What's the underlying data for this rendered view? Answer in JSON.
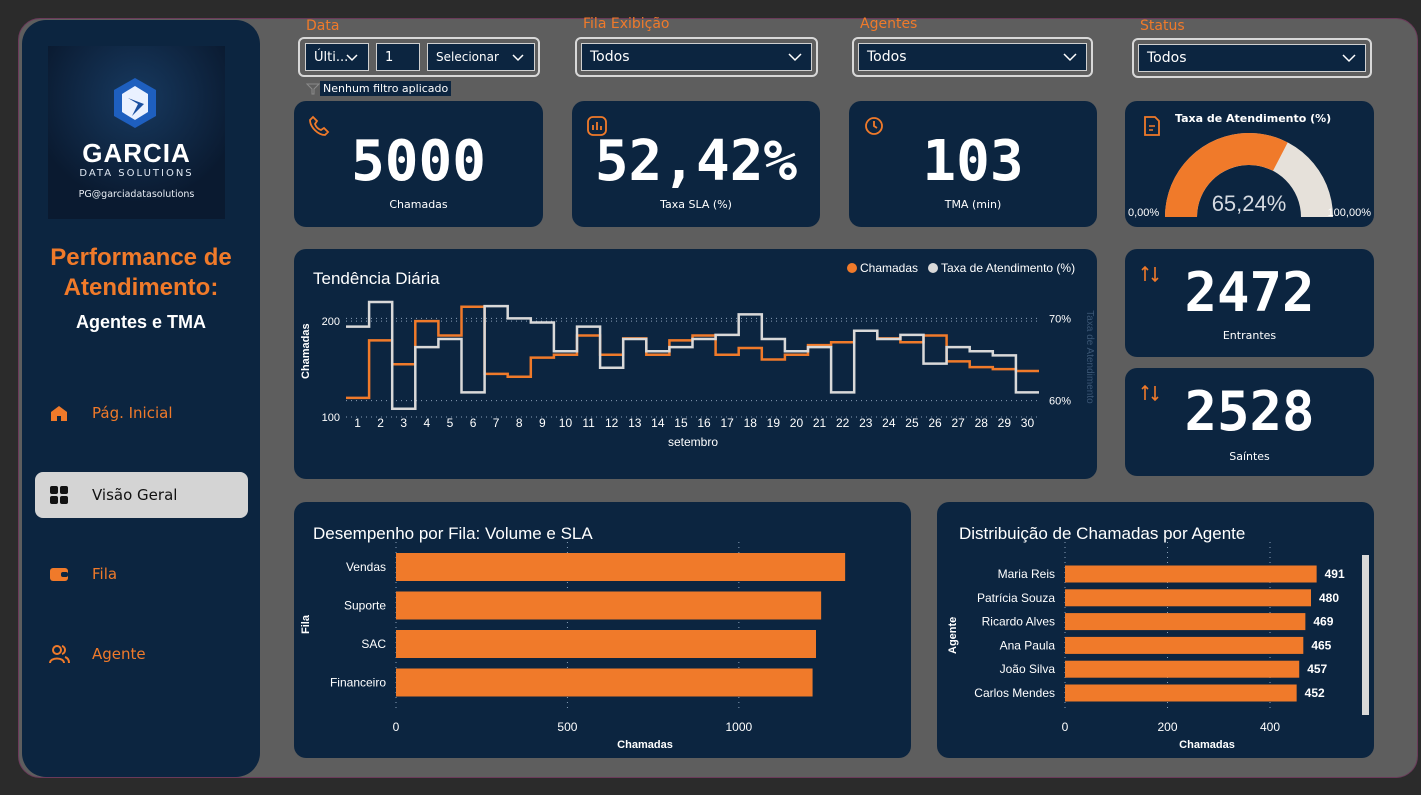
{
  "sidebar": {
    "logo": {
      "name": "GARCIA",
      "sub": "DATA SOLUTIONS",
      "mail": "PG@garciadatasolutions"
    },
    "title": "Performance de Atendimento:",
    "subtitle": "Agentes e TMA",
    "nav": [
      {
        "label": "Pág. Inicial",
        "icon": "home-icon",
        "active": false
      },
      {
        "label": "Visão Geral",
        "icon": "grid-icon",
        "active": true
      },
      {
        "label": "Fila",
        "icon": "wallet-icon",
        "active": false
      },
      {
        "label": "Agente",
        "icon": "users-icon",
        "active": false
      }
    ]
  },
  "filters": {
    "data": {
      "label": "Data",
      "period": "Últi...",
      "count": "1",
      "unit": "Selecionar"
    },
    "fila": {
      "label": "Fila Exibição",
      "value": "Todos"
    },
    "agentes": {
      "label": "Agentes",
      "value": "Todos"
    },
    "status": {
      "label": "Status",
      "value": "Todos"
    },
    "no_filter": "Nenhum filtro aplicado"
  },
  "kpis": {
    "chamadas": {
      "value": "5000",
      "label": "Chamadas"
    },
    "sla": {
      "value": "52,42%",
      "label": "Taxa SLA (%)"
    },
    "tma": {
      "value": "103",
      "label": "TMA (min)"
    },
    "entrantes": {
      "value": "2472",
      "label": "Entrantes"
    },
    "saintes": {
      "value": "2528",
      "label": "Saíntes"
    }
  },
  "gauge": {
    "title": "Taxa de Atendimento (%)",
    "value_label": "65,24%",
    "value": 0.6524,
    "min_label": "0,00%",
    "max_label": "100,00%"
  },
  "colors": {
    "orange": "#f07a2a",
    "gray": "#d9d9d9",
    "panel": "#0c2540"
  },
  "chart_data": [
    {
      "type": "line",
      "title": "Tendência Diária",
      "xlabel": "setembro",
      "ylabel": "Chamadas",
      "ylabel2": "Taxa de Atendimento",
      "x": [
        "1",
        "2",
        "3",
        "4",
        "5",
        "6",
        "7",
        "8",
        "9",
        "10",
        "11",
        "12",
        "13",
        "14",
        "15",
        "16",
        "17",
        "18",
        "19",
        "20",
        "21",
        "22",
        "23",
        "24",
        "25",
        "26",
        "27",
        "28",
        "29",
        "30"
      ],
      "ylim": [
        100,
        220
      ],
      "y2lim": [
        0.58,
        0.72
      ],
      "y_ticks": [
        "100",
        "200"
      ],
      "y2_ticks": [
        "60%",
        "70%"
      ],
      "legend_position": "top-right",
      "series": [
        {
          "name": "Chamadas",
          "color": "#f07a2a",
          "axis": "left",
          "values": [
            120,
            180,
            155,
            200,
            185,
            215,
            145,
            142,
            162,
            165,
            185,
            165,
            182,
            165,
            180,
            185,
            165,
            172,
            160,
            165,
            175,
            178,
            190,
            182,
            178,
            185,
            158,
            152,
            150,
            148
          ]
        },
        {
          "name": "Taxa de Atendimento (%)",
          "color": "#d9d9d9",
          "axis": "right",
          "values": [
            0.69,
            0.72,
            0.59,
            0.665,
            0.675,
            0.61,
            0.715,
            0.7,
            0.695,
            0.66,
            0.69,
            0.64,
            0.675,
            0.66,
            0.665,
            0.675,
            0.68,
            0.705,
            0.675,
            0.66,
            0.665,
            0.61,
            0.685,
            0.675,
            0.68,
            0.645,
            0.665,
            0.66,
            0.655,
            0.61
          ]
        }
      ]
    },
    {
      "type": "bar",
      "title": "Desempenho por Fila: Volume e SLA",
      "xlabel": "Chamadas",
      "ylabel": "Fila",
      "categories": [
        "Vendas",
        "Suporte",
        "SAC",
        "Financeiro"
      ],
      "values": [
        1310,
        1240,
        1225,
        1215
      ],
      "xlim": [
        0,
        1400
      ],
      "x_ticks": [
        "0",
        "500",
        "1000"
      ]
    },
    {
      "type": "bar",
      "title": "Distribuição de Chamadas por Agente",
      "xlabel": "Chamadas",
      "ylabel": "Agente",
      "categories": [
        "Maria Reis",
        "Patrícia Souza",
        "Ricardo Alves",
        "Ana Paula",
        "João Silva",
        "Carlos Mendes"
      ],
      "values": [
        491,
        480,
        469,
        465,
        457,
        452
      ],
      "value_labels": [
        "491",
        "480",
        "469",
        "465",
        "457",
        "452"
      ],
      "xlim": [
        0,
        560
      ],
      "x_ticks": [
        "0",
        "200",
        "400"
      ]
    }
  ]
}
